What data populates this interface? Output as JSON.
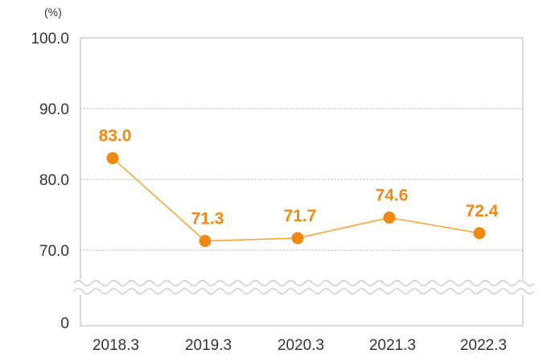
{
  "chart_data": {
    "type": "line",
    "unit_label": "(%)",
    "categories": [
      "2018.3",
      "2019.3",
      "2020.3",
      "2021.3",
      "2022.3"
    ],
    "series": [
      {
        "values": [
          83.0,
          71.3,
          71.7,
          74.6,
          72.4
        ]
      }
    ],
    "data_labels": [
      "83.0",
      "71.3",
      "71.7",
      "74.6",
      "72.4"
    ],
    "y_ticks": [
      "100.0",
      "90.0",
      "80.0",
      "70.0",
      "0"
    ],
    "ylim": [
      70,
      100
    ],
    "axis_break": true,
    "grid": true,
    "color": "#ee8a14"
  }
}
